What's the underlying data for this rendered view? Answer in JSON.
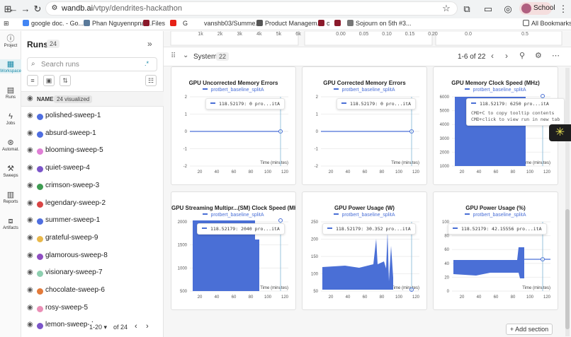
{
  "browser": {
    "url_host": "wandb.ai",
    "url_path": "/vtpy/dendrites-hackathon",
    "profile": "School",
    "bookmarks": [
      "google doc. - Go...",
      "Phan Nguyennpnal...",
      "Files",
      "",
      "G",
      "vanshb03/Summe...",
      "Product Managem...",
      "c",
      "",
      "Sojourn on 5th #3..."
    ],
    "all_bookmarks": "All Bookmarks"
  },
  "rail": [
    {
      "label": "Project",
      "icon": "info-icon"
    },
    {
      "label": "Workspace",
      "icon": "workspace-icon",
      "active": true
    },
    {
      "label": "Runs",
      "icon": "table-icon"
    },
    {
      "label": "Jobs",
      "icon": "bolt-icon"
    },
    {
      "label": "Automat.",
      "icon": "automation-icon"
    },
    {
      "label": "Sweeps",
      "icon": "broom-icon"
    },
    {
      "label": "Reports",
      "icon": "report-icon"
    },
    {
      "label": "Artifacts",
      "icon": "artifact-icon"
    }
  ],
  "runs": {
    "title": "Runs",
    "count": "24",
    "search_placeholder": "Search runs",
    "header_name": "NAME",
    "header_visualized": "24 visualized",
    "items": [
      {
        "name": "polished-sweep-1",
        "color": "#4f6ee0"
      },
      {
        "name": "absurd-sweep-1",
        "color": "#4f6ee0"
      },
      {
        "name": "blooming-sweep-5",
        "color": "#e07fd6"
      },
      {
        "name": "quiet-sweep-4",
        "color": "#7b55c9"
      },
      {
        "name": "crimson-sweep-3",
        "color": "#3e9c52"
      },
      {
        "name": "legendary-sweep-2",
        "color": "#d94545"
      },
      {
        "name": "summer-sweep-1",
        "color": "#4f6ee0"
      },
      {
        "name": "grateful-sweep-9",
        "color": "#e9b84a"
      },
      {
        "name": "glamorous-sweep-8",
        "color": "#8f4ec2"
      },
      {
        "name": "visionary-sweep-7",
        "color": "#8ecfb0"
      },
      {
        "name": "chocolate-sweep-6",
        "color": "#e37a3a"
      },
      {
        "name": "rosy-sweep-5",
        "color": "#ea8fb6"
      },
      {
        "name": "lemon-sweep-4",
        "color": "#7b55c9"
      }
    ],
    "pager_range": "1-20",
    "pager_of": "of 24"
  },
  "top_axes": {
    "a": [
      "1k",
      "2k",
      "3k",
      "4k",
      "5k",
      "6k"
    ],
    "b": [
      "0.00",
      "0.05",
      "0.10",
      "0.15",
      "0.20"
    ],
    "c": [
      "0.0",
      "0.5"
    ]
  },
  "section": {
    "title": "System",
    "count": "22",
    "page": "1-6 of 22",
    "add_section": "+ Add section"
  },
  "legend_run": "protbert_baseline_splitA",
  "x_label": "Time (minutes)",
  "tooltip_hint": [
    "CMD+C to copy tooltip contents",
    "CMD+click to view run in new tab"
  ],
  "panels": [
    {
      "title": "GPU Uncorrected Memory Errors",
      "tip": "118.52179: 0 pro...itA",
      "yticks": [
        "2",
        "1",
        "0",
        "-1",
        "-2"
      ],
      "xticks": [
        "20",
        "40",
        "60",
        "80",
        "100",
        "120"
      ]
    },
    {
      "title": "GPU Corrected Memory Errors",
      "tip": "118.52179: 0 pro...itA",
      "yticks": [
        "2",
        "1",
        "0",
        "-1",
        "-2"
      ],
      "xticks": [
        "20",
        "40",
        "60",
        "80",
        "100",
        "120"
      ]
    },
    {
      "title": "GPU Memory Clock Speed (MHz)",
      "tip": "118.52179: 6250 pro...itA",
      "yticks": [
        "6000",
        "5000",
        "4000",
        "3000",
        "2000",
        "1000"
      ],
      "xticks": [
        "20",
        "40",
        "60",
        "80",
        "100",
        "120"
      ]
    },
    {
      "title": "GPU Streaming Multipr...(SM) Clock Speed (MHz)",
      "tip": "118.52179: 2040 pro...itA",
      "yticks": [
        "2000",
        "1500",
        "1000",
        "500"
      ],
      "xticks": [
        "20",
        "40",
        "60",
        "80",
        "100",
        "120"
      ]
    },
    {
      "title": "GPU Power Usage (W)",
      "tip": "118.52179: 30.352 pro...itA",
      "yticks": [
        "250",
        "200",
        "150",
        "100",
        "50"
      ],
      "xticks": [
        "20",
        "40",
        "60",
        "80",
        "100",
        "120"
      ]
    },
    {
      "title": "GPU Power Usage (%)",
      "tip": "118.52179: 42.15556 pro...itA",
      "yticks": [
        "100",
        "80",
        "60",
        "40",
        "20",
        "0"
      ],
      "xticks": [
        "20",
        "40",
        "60",
        "80",
        "100",
        "120"
      ]
    }
  ],
  "colors": {
    "accent": "#1a8aa8",
    "series": "#4a6fd6"
  }
}
